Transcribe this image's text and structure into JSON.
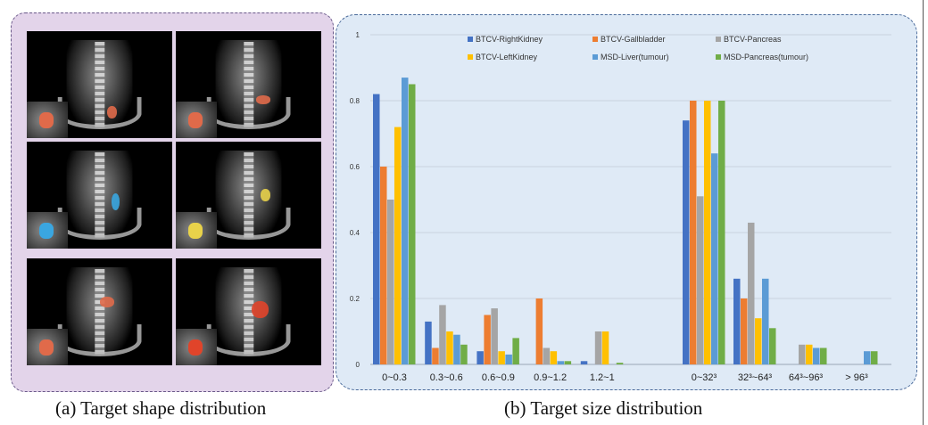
{
  "panel_a": {
    "caption": "(a) Target shape distribution",
    "thumbnails": [
      {
        "organ": "kidney-right",
        "color": "#e06a4a"
      },
      {
        "organ": "gallbladder",
        "color": "#e06a4a"
      },
      {
        "organ": "pancreas",
        "color": "#3aa6e0"
      },
      {
        "organ": "kidney-left",
        "color": "#e8d24a"
      },
      {
        "organ": "liver-tumour",
        "color": "#e06a4a"
      },
      {
        "organ": "pancreas-tumour",
        "color": "#e0442a"
      }
    ]
  },
  "panel_b": {
    "caption": "(b) Target size distribution"
  },
  "chart_data": {
    "type": "bar",
    "ylim": [
      0,
      1
    ],
    "yticks": [
      "0",
      "0.2",
      "0.4",
      "0.6",
      "0.8",
      "1"
    ],
    "grid": true,
    "legend_position": "top-center",
    "groups": [
      {
        "categories": [
          "0~0.3",
          "0.3~0.6",
          "0.6~0.9",
          "0.9~1.2",
          "1.2~1"
        ],
        "series": [
          {
            "name": "BTCV-RightKidney",
            "color": "#4472c4",
            "values": [
              0.82,
              0.13,
              0.04,
              0.0,
              0.01
            ]
          },
          {
            "name": "BTCV-Gallbladder",
            "color": "#ed7d31",
            "values": [
              0.6,
              0.05,
              0.15,
              0.2,
              0.0
            ]
          },
          {
            "name": "BTCV-Pancreas",
            "color": "#a5a5a5",
            "values": [
              0.5,
              0.18,
              0.17,
              0.05,
              0.1
            ]
          },
          {
            "name": "BTCV-LeftKidney",
            "color": "#ffc000",
            "values": [
              0.72,
              0.1,
              0.04,
              0.04,
              0.1
            ]
          },
          {
            "name": "MSD-Liver(tumour)",
            "color": "#5b9bd5",
            "values": [
              0.87,
              0.09,
              0.03,
              0.01,
              0.0
            ]
          },
          {
            "name": "MSD-Pancreas(tumour)",
            "color": "#70ad47",
            "values": [
              0.85,
              0.06,
              0.08,
              0.01,
              0.005
            ]
          }
        ]
      },
      {
        "categories": [
          "0~32³",
          "32³~64³",
          "64³~96³",
          "> 96³"
        ],
        "series": [
          {
            "name": "BTCV-RightKidney",
            "color": "#4472c4",
            "values": [
              0.74,
              0.26,
              0.0,
              0.0
            ]
          },
          {
            "name": "BTCV-Gallbladder",
            "color": "#ed7d31",
            "values": [
              0.8,
              0.2,
              0.0,
              0.0
            ]
          },
          {
            "name": "BTCV-Pancreas",
            "color": "#a5a5a5",
            "values": [
              0.51,
              0.43,
              0.06,
              0.0
            ]
          },
          {
            "name": "BTCV-LeftKidney",
            "color": "#ffc000",
            "values": [
              0.8,
              0.14,
              0.06,
              0.0
            ]
          },
          {
            "name": "MSD-Liver(tumour)",
            "color": "#5b9bd5",
            "values": [
              0.64,
              0.26,
              0.05,
              0.04
            ]
          },
          {
            "name": "MSD-Pancreas(tumour)",
            "color": "#70ad47",
            "values": [
              0.8,
              0.11,
              0.05,
              0.04
            ]
          }
        ]
      }
    ]
  }
}
